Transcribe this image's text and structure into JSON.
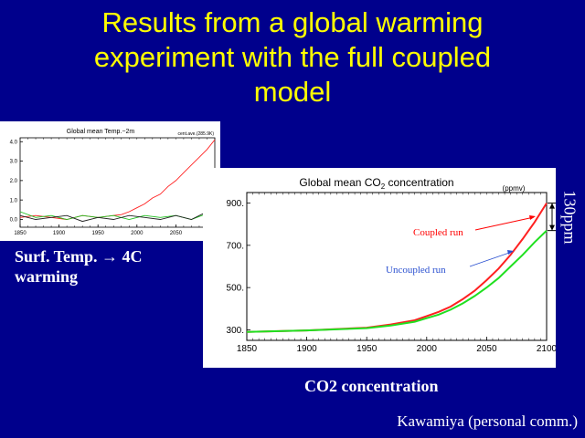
{
  "slide": {
    "title_lines": [
      "Results from a global warming",
      "experiment with the full coupled",
      "model"
    ],
    "temp_caption_line1": "Surf. Temp. → 4C",
    "temp_caption_line2": "warming",
    "co2_caption": "CO2 concentration",
    "side_annotation": "130ppm",
    "credit": "Kawamiya (personal comm.)",
    "background_color": "#00008c",
    "title_color": "#ffff00"
  },
  "chart_data": [
    {
      "type": "line",
      "title": "Global mean Temp.−2m",
      "subtitle": "cent.ave.(285.9K)",
      "xlim": [
        1850,
        2100
      ],
      "ylim": [
        -0.4,
        4.2
      ],
      "x_ticks": [
        1850,
        1900,
        1950,
        2000,
        2050,
        2100
      ],
      "y_ticks": [
        "4.0",
        "3.0",
        "2.0",
        "1.0",
        "0.0"
      ],
      "y_tick_values": [
        4.0,
        3.0,
        2.0,
        1.0,
        0.0
      ],
      "series": [
        {
          "color": "#ff2020",
          "x": [
            1850,
            1870,
            1890,
            1910,
            1930,
            1950,
            1970,
            1980,
            1990,
            2000,
            2010,
            2020,
            2030,
            2040,
            2050,
            2060,
            2070,
            2080,
            2090,
            2100
          ],
          "y": [
            0.1,
            0.2,
            0.1,
            0.0,
            0.2,
            0.1,
            0.2,
            0.25,
            0.4,
            0.6,
            0.8,
            1.1,
            1.3,
            1.7,
            2.0,
            2.4,
            2.8,
            3.2,
            3.6,
            4.1
          ]
        },
        {
          "color": "#20c020",
          "x": [
            1850,
            1870,
            1890,
            1910,
            1930,
            1950,
            1970,
            1990,
            2010,
            2030,
            2050,
            2070,
            2090,
            2100
          ],
          "y": [
            0.4,
            0.1,
            0.2,
            0.0,
            0.2,
            0.1,
            0.2,
            0.0,
            0.2,
            0.1,
            0.2,
            0.0,
            0.3,
            0.1
          ]
        },
        {
          "color": "#202020",
          "x": [
            1850,
            1870,
            1890,
            1910,
            1930,
            1950,
            1970,
            1990,
            2010,
            2030,
            2050,
            2070,
            2090,
            2100
          ],
          "y": [
            0.2,
            0.0,
            0.1,
            0.2,
            -0.1,
            0.1,
            0.0,
            0.2,
            0.1,
            0.0,
            0.2,
            0.0,
            0.4,
            0.2
          ]
        }
      ]
    },
    {
      "type": "line",
      "title": "Global mean CO2 concentration",
      "unit_label": "(ppmv)",
      "xlim": [
        1850,
        2100
      ],
      "ylim": [
        250,
        950
      ],
      "x_ticks": [
        1850,
        1900,
        1950,
        2000,
        2050,
        2100
      ],
      "y_ticks": [
        "900.",
        "700.",
        "500.",
        "300."
      ],
      "y_tick_values": [
        900,
        700,
        500,
        300
      ],
      "series": [
        {
          "name": "Coupled run",
          "color": "#ff2020",
          "x": [
            1850,
            1900,
            1950,
            1970,
            1990,
            2000,
            2010,
            2020,
            2030,
            2040,
            2050,
            2060,
            2070,
            2080,
            2090,
            2100
          ],
          "y": [
            290,
            297,
            310,
            325,
            345,
            365,
            385,
            410,
            445,
            485,
            535,
            590,
            655,
            730,
            810,
            900
          ]
        },
        {
          "name": "Uncoupled run",
          "color": "#20e020",
          "x": [
            1850,
            1900,
            1950,
            1970,
            1990,
            2000,
            2010,
            2020,
            2030,
            2040,
            2050,
            2060,
            2070,
            2080,
            2090,
            2100
          ],
          "y": [
            290,
            297,
            308,
            320,
            338,
            355,
            372,
            395,
            425,
            460,
            500,
            545,
            600,
            655,
            715,
            770
          ]
        }
      ],
      "annotations": [
        "Coupled run",
        "Uncoupled run"
      ]
    }
  ]
}
